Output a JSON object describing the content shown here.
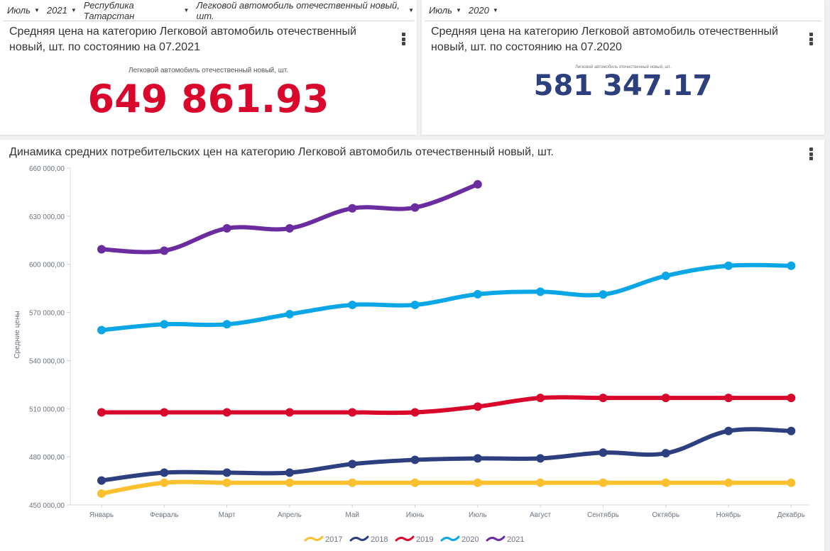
{
  "cards": {
    "left": {
      "filters": [
        "Июль",
        "2021",
        "Республика Татарстан",
        "Легковой автомобиль отечественный новый, шт."
      ],
      "title": "Средняя цена на категорию Легковой автомобиль отечественный новый, шт. по состоянию на 07.2021",
      "subtitle": "Легковой автомобиль отечественный новый, шт.",
      "value": "649 861.93",
      "value_color": "#d9072b"
    },
    "right": {
      "filters": [
        "Июль",
        "2020"
      ],
      "title": "Средняя цена на категорию Легковой автомобиль отечественный новый, шт. по состоянию на 07.2020",
      "subtitle": "Легковой автомобиль отечественный новый, шт.",
      "value": "581 347.17",
      "value_color": "#2d3f7c"
    }
  },
  "chart_card": {
    "title": "Динамика средних потребительских цен на категорию Легковой автомобиль отечественный новый, шт."
  },
  "chart_data": {
    "type": "line",
    "title": "Динамика средних потребительских цен на категорию Легковой автомобиль отечественный новый, шт.",
    "xlabel": "",
    "ylabel": "Средние цены",
    "categories": [
      "Январь",
      "Февраль",
      "Март",
      "Апрель",
      "Май",
      "Июнь",
      "Июль",
      "Август",
      "Сентябрь",
      "Октябрь",
      "Ноябрь",
      "Декабрь"
    ],
    "ylim": [
      450000,
      660000
    ],
    "yticks": [
      450000,
      480000,
      510000,
      540000,
      570000,
      600000,
      630000,
      660000
    ],
    "ytick_labels": [
      "450 000,00",
      "480 000,00",
      "510 000,00",
      "540 000,00",
      "570 000,00",
      "600 000,00",
      "630 000,00",
      "660 000,00"
    ],
    "grid": false,
    "smooth": true,
    "legend_position": "bottom-center",
    "series": [
      {
        "name": "2017",
        "color": "#fbc02d",
        "values": [
          457100,
          463800,
          463800,
          463800,
          463800,
          463800,
          463800,
          463800,
          463800,
          463800,
          463800,
          463800
        ]
      },
      {
        "name": "2018",
        "color": "#2e3f80",
        "values": [
          465200,
          470100,
          470100,
          470100,
          475500,
          478100,
          479000,
          479000,
          482600,
          482200,
          496100,
          496100
        ]
      },
      {
        "name": "2019",
        "color": "#d9072b",
        "values": [
          507700,
          507700,
          507700,
          507700,
          507700,
          507700,
          511300,
          516700,
          516700,
          516700,
          516700,
          516700
        ]
      },
      {
        "name": "2020",
        "color": "#0aa6e6",
        "values": [
          559000,
          562600,
          562600,
          568900,
          574700,
          574700,
          581347.17,
          582900,
          581200,
          592800,
          599100,
          599100
        ]
      },
      {
        "name": "2021",
        "color": "#6a2c9f",
        "values": [
          609400,
          608500,
          622400,
          622400,
          634900,
          635400,
          649861.93
        ]
      }
    ]
  }
}
